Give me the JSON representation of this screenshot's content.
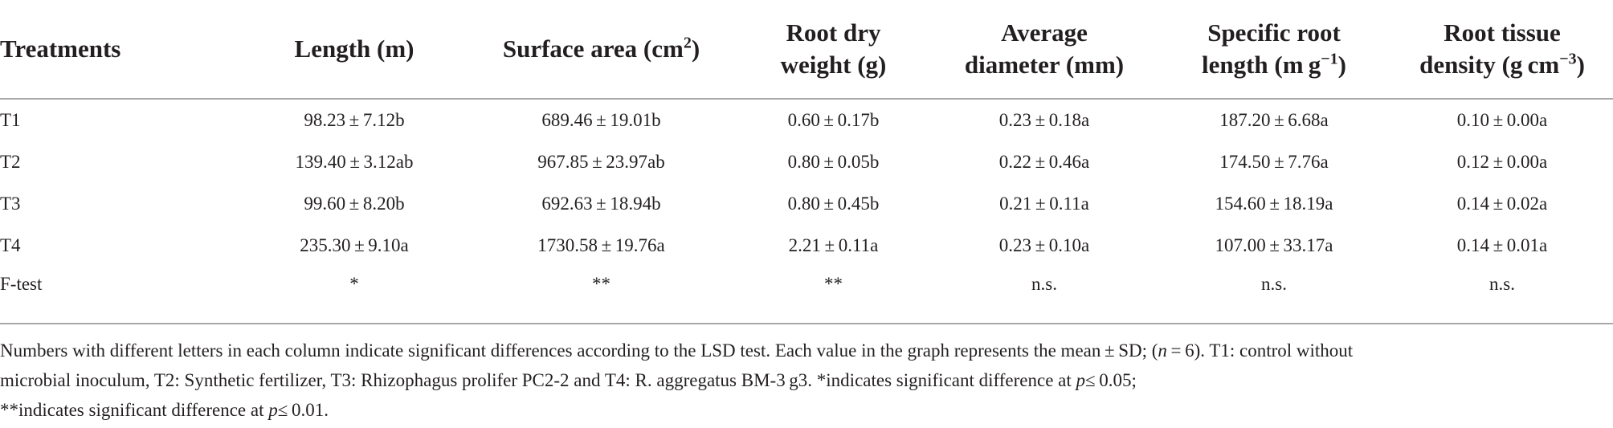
{
  "table": {
    "headers": [
      {
        "l1": "Treatments",
        "l2": ""
      },
      {
        "l1": "Length (m)",
        "l2": ""
      },
      {
        "l1": "Surface area (cm",
        "sup": "2",
        "tail": ")",
        "l2": ""
      },
      {
        "l1": "Root dry",
        "l2": "weight (g)"
      },
      {
        "l1": "Average",
        "l2": "diameter (mm)"
      },
      {
        "l1": "Specific root",
        "l2a": "length (m g",
        "sup": "−1",
        "tail": ")"
      },
      {
        "l1": "Root tissue",
        "l2a": "density (g cm",
        "sup": "−3",
        "tail": ")"
      }
    ],
    "rows": [
      [
        "T1",
        "98.23 ± 7.12b",
        "689.46 ± 19.01b",
        "0.60 ± 0.17b",
        "0.23 ± 0.18a",
        "187.20 ± 6.68a",
        "0.10 ± 0.00a"
      ],
      [
        "T2",
        "139.40 ± 3.12ab",
        "967.85 ± 23.97ab",
        "0.80 ± 0.05b",
        "0.22 ± 0.46a",
        "174.50 ± 7.76a",
        "0.12 ± 0.00a"
      ],
      [
        "T3",
        "99.60 ± 8.20b",
        "692.63 ± 18.94b",
        "0.80 ± 0.45b",
        "0.21 ± 0.11a",
        "154.60 ± 18.19a",
        "0.14 ± 0.02a"
      ],
      [
        "T4",
        "235.30 ± 9.10a",
        "1730.58 ± 19.76a",
        "2.21 ± 0.11a",
        "0.23 ± 0.10a",
        "107.00 ± 33.17a",
        "0.14 ± 0.01a"
      ],
      [
        "F-test",
        "*",
        "**",
        "**",
        "n.s.",
        "n.s.",
        "n.s."
      ]
    ]
  },
  "footnote": {
    "line1": "Numbers with different letters in each column indicate significant differences according to the LSD test. Each value in the graph represents the mean ± SD; (",
    "n_var": "n",
    "line1_tail": " = 6). T1: control without",
    "line2": "microbial inoculum, T2: Synthetic fertilizer, T3: Rhizophagus prolifer PC2-2 and T4: R. aggregatus BM-3 g3. *indicates significant difference at ",
    "p_var": "p",
    "line2_tail": "≤ 0.05;",
    "line3": "**indicates significant difference at ",
    "line3_tail": "≤ 0.01."
  }
}
